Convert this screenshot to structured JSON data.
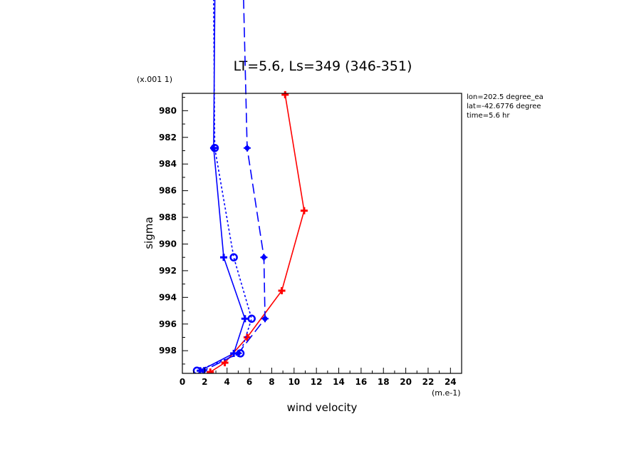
{
  "chart_data": {
    "type": "line",
    "title": "LT=5.6, Ls=349 (346-351)",
    "xlabel": "wind velocity",
    "ylabel": "sigma",
    "x_units": "(m.e-1)",
    "y_scale_label": "(x.001 1)",
    "xlim": [
      0,
      25
    ],
    "ylim": [
      999.7,
      978.7
    ],
    "x_ticks": [
      "0",
      "2",
      "4",
      "6",
      "8",
      "10",
      "12",
      "14",
      "16",
      "18",
      "20",
      "22",
      "24"
    ],
    "y_ticks": [
      "980",
      "982",
      "984",
      "986",
      "988",
      "990",
      "992",
      "994",
      "996",
      "998"
    ],
    "info_lines": [
      "lon=202.5 degree_ea",
      "lat=-42.6776 degree",
      "time=5.6 hr"
    ],
    "series": [
      {
        "color": "#ff0000",
        "dash": "solid",
        "marker": "plus",
        "points": [
          [
            9.2,
            978.8
          ],
          [
            10.9,
            987.5
          ],
          [
            8.9,
            993.5
          ],
          [
            5.8,
            997.0
          ],
          [
            3.8,
            998.9
          ],
          [
            2.5,
            999.6
          ]
        ]
      },
      {
        "color": "#0000ff",
        "dash": "solid",
        "marker": "plus",
        "points": [
          [
            3.0,
            962.0
          ],
          [
            2.8,
            982.8
          ],
          [
            3.7,
            991.0
          ],
          [
            5.6,
            995.6
          ],
          [
            4.6,
            998.2
          ],
          [
            1.6,
            999.5
          ]
        ]
      },
      {
        "color": "#0000ff",
        "dash": "dot",
        "marker": "circle",
        "points": [
          [
            2.7,
            962.0
          ],
          [
            2.9,
            982.8
          ],
          [
            4.6,
            991.0
          ],
          [
            6.2,
            995.6
          ],
          [
            5.2,
            998.2
          ],
          [
            1.3,
            999.5
          ]
        ]
      },
      {
        "color": "#0000ff",
        "dash": "dash",
        "marker": "dotplus",
        "points": [
          [
            5.2,
            962.0
          ],
          [
            5.8,
            982.8
          ],
          [
            7.3,
            991.0
          ],
          [
            7.4,
            995.6
          ],
          [
            5.0,
            998.2
          ],
          [
            1.9,
            999.5
          ]
        ]
      }
    ]
  }
}
